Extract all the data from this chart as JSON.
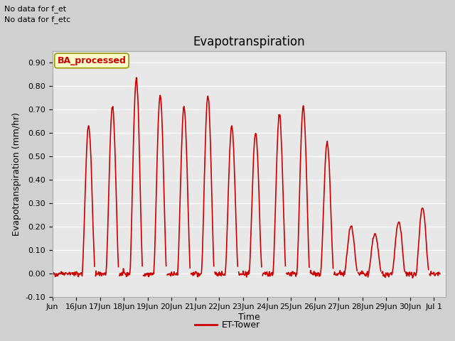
{
  "title": "Evapotranspiration",
  "ylabel": "Evapotranspiration (mm/hr)",
  "xlabel": "Time",
  "text_no_data_1": "No data for f_et",
  "text_no_data_2": "No data for f_etc",
  "ba_processed_label": "BA_processed",
  "legend_label": "ET-Tower",
  "ylim": [
    -0.1,
    0.95
  ],
  "yticks": [
    -0.1,
    0.0,
    0.1,
    0.2,
    0.3,
    0.4,
    0.5,
    0.6,
    0.7,
    0.8,
    0.9
  ],
  "line_color": "#cc0000",
  "line_width": 1.2,
  "fig_bg_color": "#d0d0d0",
  "plot_bg_color": "#e8e8e8",
  "ba_box_facecolor": "#ffffcc",
  "ba_box_edgecolor": "#999900",
  "ba_text_color": "#cc0000",
  "title_fontsize": 12,
  "axis_fontsize": 9,
  "tick_fontsize": 8,
  "legend_fontsize": 9,
  "nodata_fontsize": 8,
  "amplitudes": [
    0.0,
    0.63,
    0.71,
    0.83,
    0.76,
    0.71,
    0.76,
    0.63,
    0.6,
    0.68,
    0.71,
    0.56,
    0.2,
    0.17,
    0.22,
    0.28,
    0.0
  ]
}
